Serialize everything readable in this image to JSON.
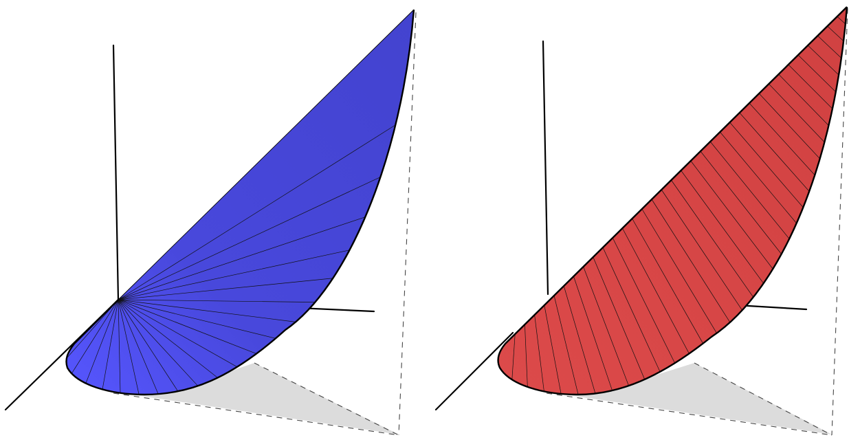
{
  "panels": [
    {
      "name": "left-surface",
      "surface_color": "#4343cf",
      "surface_highlight": "#5656ff",
      "ruling_style": "fan",
      "ruling_count": 20
    },
    {
      "name": "right-surface",
      "surface_color": "#d04141",
      "surface_highlight": "#dc4a4a",
      "ruling_style": "parallel",
      "ruling_count": 34
    }
  ],
  "colors": {
    "axis": "#000000",
    "shadow": "#dcdcdc",
    "background": "#ffffff"
  }
}
